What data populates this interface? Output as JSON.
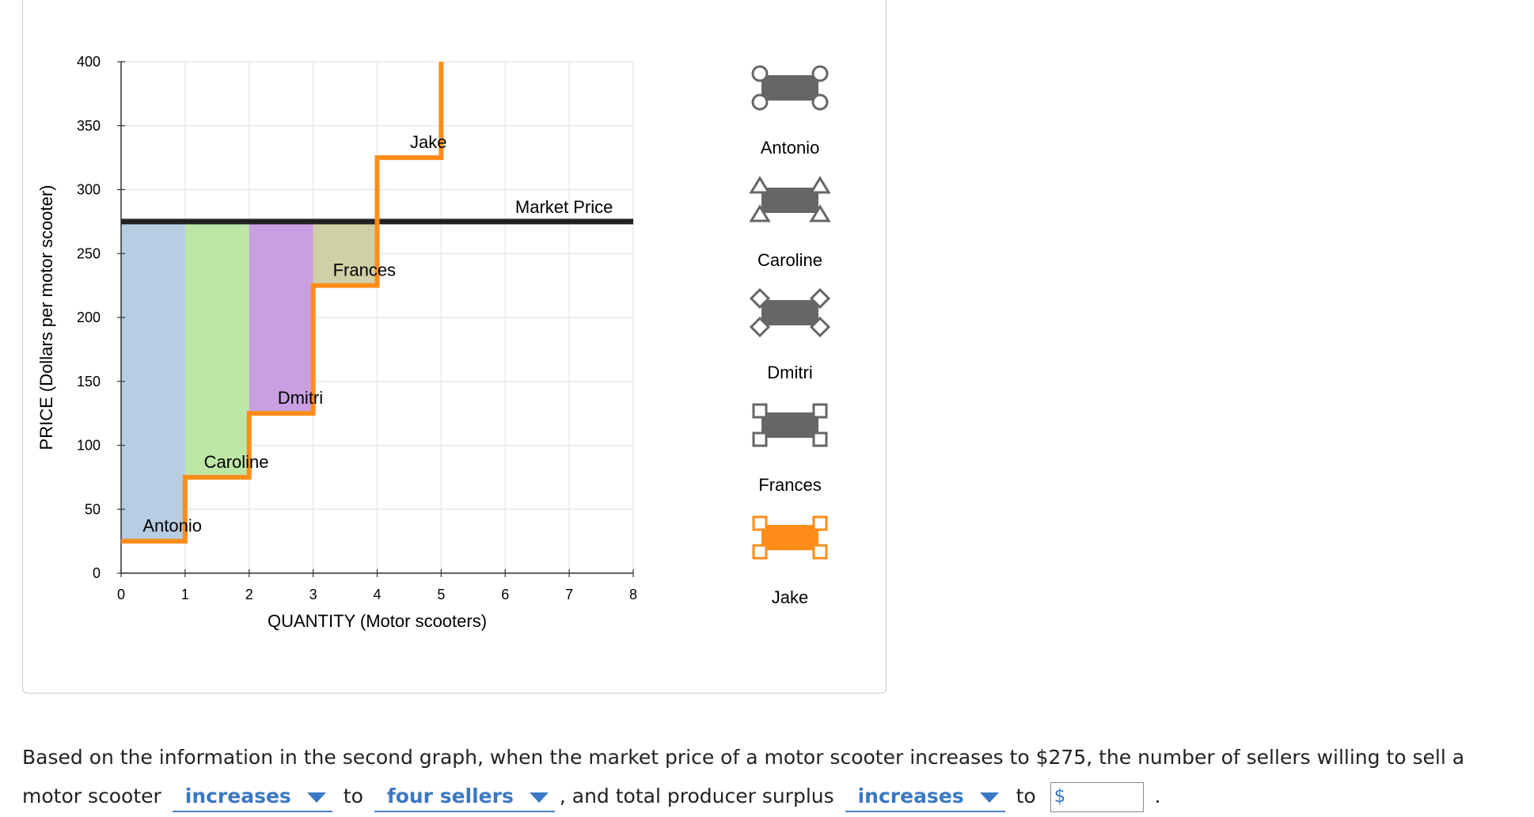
{
  "chart_data": {
    "type": "step",
    "xlabel": "QUANTITY (Motor scooters)",
    "ylabel": "PRICE (Dollars per motor scooter)",
    "xlim": [
      0,
      8
    ],
    "ylim": [
      0,
      400
    ],
    "xticks": [
      "0",
      "1",
      "2",
      "3",
      "4",
      "5",
      "6",
      "7",
      "8"
    ],
    "yticks": [
      "0",
      "50",
      "100",
      "150",
      "200",
      "250",
      "300",
      "350",
      "400"
    ],
    "grid": true,
    "supply_steps": [
      {
        "name": "Antonio",
        "x": [
          0,
          1
        ],
        "price": 25,
        "color": "#b7cde3"
      },
      {
        "name": "Caroline",
        "x": [
          1,
          2
        ],
        "price": 75,
        "color": "#bde6a6"
      },
      {
        "name": "Dmitri",
        "x": [
          2,
          3
        ],
        "price": 125,
        "color": "#c99fe2"
      },
      {
        "name": "Frances",
        "x": [
          3,
          4
        ],
        "price": 225,
        "color": "#cfd0a6"
      },
      {
        "name": "Jake",
        "x": [
          4,
          5
        ],
        "price": 325,
        "color": "none"
      }
    ],
    "supply_tail_to": 400,
    "supply_color": "#ff8c1a",
    "market_price": {
      "label": "Market Price",
      "value": 275,
      "color": "#222222"
    },
    "legend": {
      "placement": "right",
      "items": [
        {
          "label": "Antonio",
          "icon": "circle-marker-icon",
          "fill": "#666666"
        },
        {
          "label": "Caroline",
          "icon": "triangle-marker-icon",
          "fill": "#666666"
        },
        {
          "label": "Dmitri",
          "icon": "diamond-marker-icon",
          "fill": "#666666"
        },
        {
          "label": "Frances",
          "icon": "square-marker-icon",
          "fill": "#666666"
        },
        {
          "label": "Jake",
          "icon": "square-marker-icon",
          "fill": "#ff8c1a"
        }
      ]
    }
  },
  "question": {
    "part1": "Based on the information in the second graph, when the market price of a motor scooter increases to $275, the number of sellers willing to sell a motor scooter",
    "dropdown1": "increases",
    "to1": "to",
    "dropdown2": "four sellers",
    "part2": ", and total producer surplus",
    "dropdown3": "increases",
    "to2": "to",
    "currency": "$",
    "answer_placeholder": "",
    "end": "."
  }
}
